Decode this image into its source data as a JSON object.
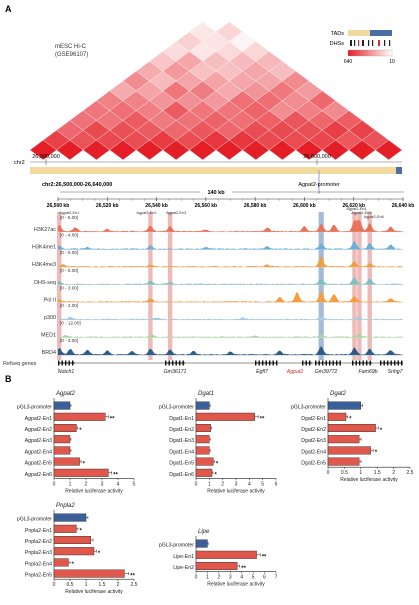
{
  "panel_a": {
    "letter": "A",
    "hic_title": "mESC Hi-C",
    "hic_subtitle": "(GSE96107)",
    "legend": {
      "tads": "TADs",
      "dhss": "DHSs",
      "scale_hi": "640",
      "scale_lo": "10"
    },
    "chr_label": "chr2",
    "chr_tick_1": "26,500,000",
    "chr_tick_2": "26,600,000",
    "region": "chr2:26,500,000-26,640,000",
    "span": "140 kb",
    "promoter_label": "Agpat2-promoter",
    "coord_ticks": [
      "26,500 kb",
      "26,520 kb",
      "26,540 kb",
      "26,560 kb",
      "26,580 kb",
      "26,600 kb",
      "26,620 kb",
      "26,640 kb"
    ],
    "enhancer_labels": [
      "Agpat2-En1",
      "Agpat2-En2",
      "Agpat2-En3",
      "Agpat2-En4",
      "Agpat2-En5",
      "Agpat2-En6"
    ],
    "tracks": [
      {
        "name": "H3K27ac",
        "range": "[0 - 5.00]",
        "color": "#e8735a"
      },
      {
        "name": "H3K4me1",
        "range": "[0 - 4.00]",
        "color": "#6baed6"
      },
      {
        "name": "H3K4me3",
        "range": "[0 - 6.00]",
        "color": "#f0a043"
      },
      {
        "name": "DHS-seq",
        "range": "[0 - 5.00]",
        "color": "#7fbfbf"
      },
      {
        "name": "Pol II",
        "range": "[0 - 3.00]",
        "color": "#f59c3c"
      },
      {
        "name": "p300",
        "range": "[0 - 2.00]",
        "color": "#9ecae1"
      },
      {
        "name": "MED1",
        "range": "[0 - 12.00]",
        "color": "#a1d99b"
      },
      {
        "name": "BRD4",
        "range": "[0 - 3.00]",
        "color": "#2c5d8a"
      }
    ],
    "refseq_label": "Refseq genes",
    "genes": [
      "Notch1",
      "Gm36171",
      "Egfl7",
      "Agpat2",
      "Gm39772",
      "Fam69b",
      "Snhg7"
    ]
  },
  "panel_b": {
    "letter": "B",
    "xlabel": "Relative luciferase activity",
    "colors": {
      "promoter": "#3b5f9a",
      "enhancer": "#e0574c"
    }
  },
  "chart_data": [
    {
      "type": "bar",
      "title": "Agpat2",
      "categories": [
        "pGL3-promoter",
        "Agpat2-En1",
        "Agpat2-En2",
        "Agpat2-En3",
        "Agpat2-En4",
        "Agpat2-En5",
        "Agpat2-En6"
      ],
      "values": [
        1.0,
        3.2,
        1.4,
        1.0,
        1.0,
        1.6,
        3.4
      ],
      "stars": [
        "",
        "**",
        "*",
        "",
        "",
        "*",
        "**"
      ],
      "xlim": [
        0,
        5
      ],
      "ticks": [
        "0",
        "1",
        "2",
        "3",
        "4",
        "5"
      ],
      "xlabel": "Relative luciferase activity"
    },
    {
      "type": "bar",
      "title": "Dgat1",
      "categories": [
        "pGL3-promoter",
        "Dgat1-En1",
        "Dgat1-En2",
        "Dgat1-En3",
        "Dgat1-En4",
        "Dgat1-En5",
        "Dgat1-En6"
      ],
      "values": [
        1.0,
        4.4,
        1.1,
        1.0,
        1.0,
        1.3,
        1.2
      ],
      "stars": [
        "",
        "**",
        "",
        "",
        "",
        "*",
        "*"
      ],
      "xlim": [
        0,
        6
      ],
      "ticks": [
        "0",
        "1",
        "2",
        "3",
        "4",
        "5",
        "6"
      ],
      "xlabel": "Relative luciferase activity"
    },
    {
      "type": "bar",
      "title": "Dgat2",
      "categories": [
        "pGL3-promoter",
        "Dgat2-En1",
        "Dgat2-En2",
        "Dgat2-En3",
        "Dgat2-En4",
        "Dgat2-En5"
      ],
      "values": [
        1.0,
        0.55,
        1.45,
        0.95,
        1.3,
        0.95
      ],
      "stars": [
        "",
        "*",
        "*",
        "",
        "*",
        ""
      ],
      "xlim": [
        0,
        2.5
      ],
      "ticks": [
        "0",
        "0.5",
        "1",
        "1.5",
        "2",
        "2.5"
      ],
      "xlabel": "Relative luciferase activity"
    },
    {
      "type": "bar",
      "title": "Pnpla2",
      "categories": [
        "pGL3-promoter",
        "Pnpla2-En1",
        "Pnpla2-En2",
        "Pnpla2-En3",
        "Pnpla2-En4",
        "Pnpla2-En5"
      ],
      "values": [
        1.0,
        0.7,
        1.15,
        1.25,
        0.45,
        2.2
      ],
      "stars": [
        "",
        "*",
        "",
        "*",
        "*",
        "**"
      ],
      "xlim": [
        0,
        2.5
      ],
      "ticks": [
        "0",
        "0.5",
        "1",
        "1.5",
        "2",
        "2.5"
      ],
      "xlabel": "Relative luciferase activity"
    },
    {
      "type": "bar",
      "title": "Lipe",
      "categories": [
        "pGL3-promoter",
        "Lipe-En1",
        "Lipe-En2"
      ],
      "values": [
        1.0,
        5.3,
        3.6
      ],
      "stars": [
        "",
        "**",
        "**"
      ],
      "xlim": [
        0,
        7
      ],
      "ticks": [
        "0",
        "1",
        "2",
        "3",
        "4",
        "5",
        "6",
        "7"
      ],
      "xlabel": "Relative luciferase activity"
    }
  ]
}
